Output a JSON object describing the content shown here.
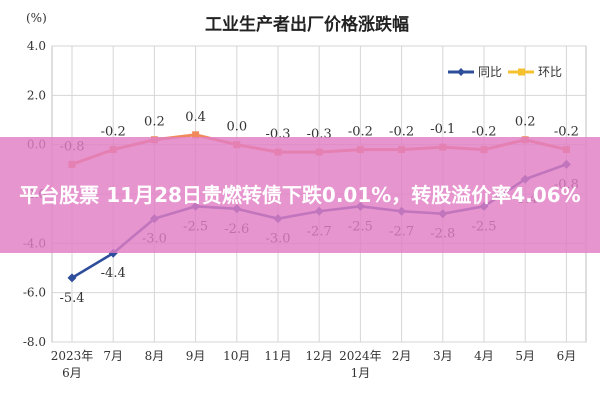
{
  "chart_data": {
    "type": "line",
    "title": "工业生产者出厂价格涨跌幅",
    "unit": "(%)",
    "categories": [
      "2023年6月",
      "7月",
      "8月",
      "9月",
      "10月",
      "11月",
      "12月",
      "2024年1月",
      "2月",
      "3月",
      "4月",
      "5月",
      "6月"
    ],
    "category_lines": [
      [
        "2023年",
        "6月"
      ],
      [
        "7月"
      ],
      [
        "8月"
      ],
      [
        "9月"
      ],
      [
        "10月"
      ],
      [
        "11月"
      ],
      [
        "12月"
      ],
      [
        "2024年",
        "1月"
      ],
      [
        "2月"
      ],
      [
        "3月"
      ],
      [
        "4月"
      ],
      [
        "5月"
      ],
      [
        "6月"
      ]
    ],
    "ylim": [
      -8.0,
      4.0
    ],
    "yticks": [
      "4.0",
      "2.0",
      "0.0",
      "-2.0",
      "-4.0",
      "-6.0",
      "-8.0"
    ],
    "grid": true,
    "legend_position": "top-right",
    "series": [
      {
        "name": "同比",
        "color": "#2e4d9a",
        "values": [
          -5.4,
          -4.4,
          -3.0,
          -2.5,
          -2.6,
          -3.0,
          -2.7,
          -2.5,
          -2.7,
          -2.8,
          -2.5,
          -1.4,
          -0.8
        ],
        "labels": [
          "-5.4",
          "-4.4",
          "-3.0",
          "-2.5",
          "-2.6",
          "-3.0",
          "-2.7",
          "-2.5",
          "-2.7",
          "-2.8",
          "-2.5",
          "-1.4",
          "-0.8"
        ]
      },
      {
        "name": "环比",
        "color": "#f08a5d",
        "values": [
          -0.8,
          -0.2,
          0.2,
          0.4,
          0.0,
          -0.3,
          -0.3,
          -0.2,
          -0.2,
          -0.1,
          -0.2,
          0.2,
          -0.2
        ],
        "labels": [
          "-0.8",
          "-0.2",
          "0.2",
          "0.4",
          "0.0",
          "-0.3",
          "-0.3",
          "-0.2",
          "-0.2",
          "-0.1",
          "-0.2",
          "0.2",
          "-0.2"
        ]
      }
    ],
    "legend_marker_color_huanbi": "#f5c12e"
  },
  "overlay": {
    "text": "平台股票 11月28日贵燃转债下跌0.01%，转股溢价率4.06%"
  }
}
